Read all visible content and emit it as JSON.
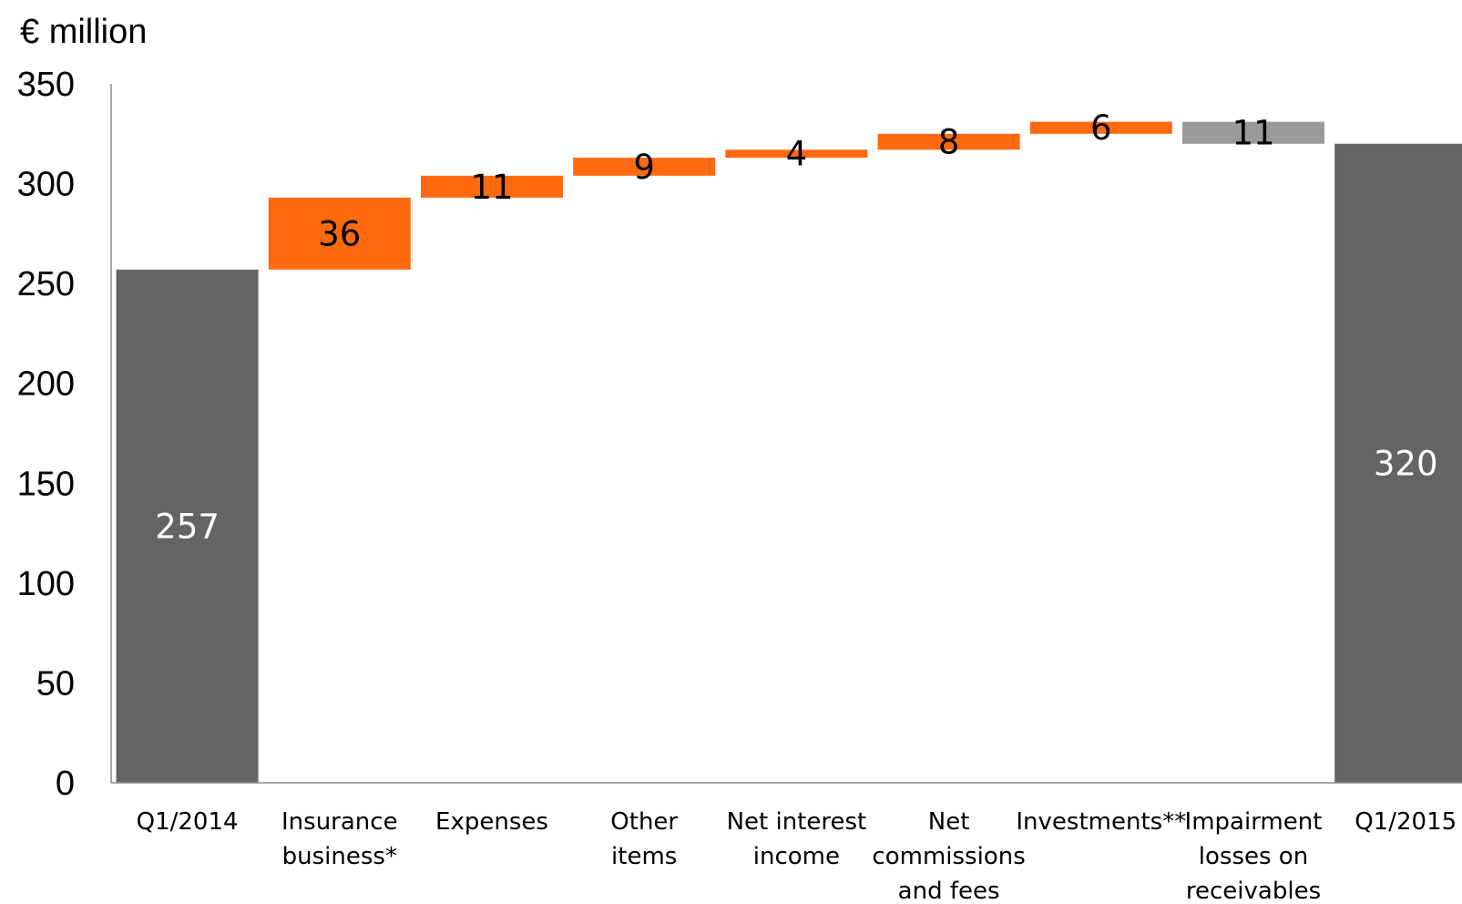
{
  "chart_data": {
    "type": "waterfall",
    "unit_label": "€ million",
    "ylim": [
      0,
      350
    ],
    "yticks": [
      0,
      50,
      100,
      150,
      200,
      250,
      300,
      350
    ],
    "grid": false,
    "legend": "none",
    "colors": {
      "total": "#646464",
      "increase": "#ff6a10",
      "decrease": "#9a9a9a"
    },
    "bars": [
      {
        "label": [
          "Q1/2014"
        ],
        "kind": "total",
        "value": 257,
        "display": "257"
      },
      {
        "label": [
          "Insurance",
          "business*"
        ],
        "kind": "increase",
        "value": 36,
        "display": "36"
      },
      {
        "label": [
          "Expenses"
        ],
        "kind": "increase",
        "value": 11,
        "display": "11"
      },
      {
        "label": [
          "Other",
          "items"
        ],
        "kind": "increase",
        "value": 9,
        "display": "9"
      },
      {
        "label": [
          "Net interest",
          "income"
        ],
        "kind": "increase",
        "value": 4,
        "display": "4"
      },
      {
        "label": [
          "Net",
          "commissions",
          "and fees"
        ],
        "kind": "increase",
        "value": 8,
        "display": "8"
      },
      {
        "label": [
          "Investments**"
        ],
        "kind": "increase",
        "value": 6,
        "display": "6"
      },
      {
        "label": [
          "Impairment",
          "losses on",
          "receivables"
        ],
        "kind": "decrease",
        "value": -11,
        "display": "11"
      },
      {
        "label": [
          "Q1/2015"
        ],
        "kind": "total",
        "value": 320,
        "display": "320"
      }
    ]
  }
}
